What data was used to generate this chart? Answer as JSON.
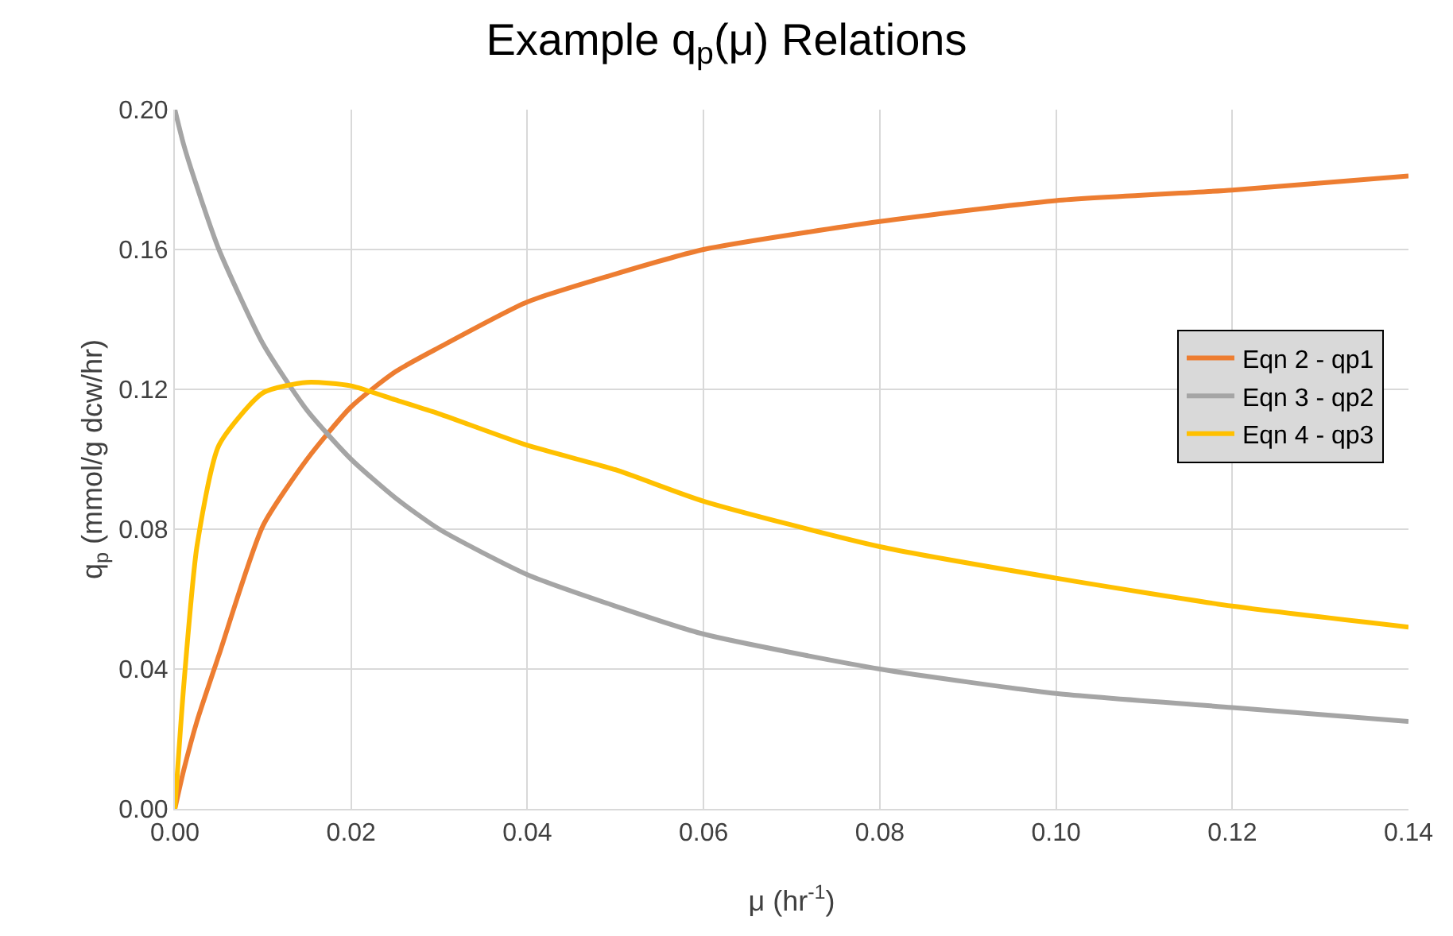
{
  "chart_data": {
    "type": "line",
    "title": "Example q$_{p}$(μ) Relations",
    "xlabel": "μ (hr$^{-1}$)",
    "ylabel": "q$_{p}$ (mmol/g dcw/hr)",
    "xlim": [
      0,
      0.14
    ],
    "xticks": [
      {
        "value": 0,
        "label": "0.00"
      },
      {
        "value": 0.02,
        "label": "0.02"
      },
      {
        "value": 0.04,
        "label": "0.04"
      },
      {
        "value": 0.06,
        "label": "0.06"
      },
      {
        "value": 0.08,
        "label": "0.08"
      },
      {
        "value": 0.1,
        "label": "0.10"
      },
      {
        "value": 0.12,
        "label": "0.12"
      },
      {
        "value": 0.14,
        "label": "0.14"
      }
    ],
    "ylim": [
      0,
      0.2
    ],
    "yticks": [
      {
        "value": 0,
        "label": "0.00"
      },
      {
        "value": 0.04,
        "label": "0.04"
      },
      {
        "value": 0.08,
        "label": "0.08"
      },
      {
        "value": 0.12,
        "label": "0.12"
      },
      {
        "value": 0.16,
        "label": "0.16"
      },
      {
        "value": 0.2,
        "label": "0.20"
      }
    ],
    "x": [
      0,
      0.001,
      0.0025,
      0.005,
      0.01,
      0.015,
      0.02,
      0.025,
      0.03,
      0.04,
      0.05,
      0.06,
      0.08,
      0.1,
      0.12,
      0.14
    ],
    "series": [
      {
        "name": "Eqn 2 - qp1",
        "color": "#ed7d31",
        "values": [
          0,
          0.011,
          0.025,
          0.044,
          0.081,
          0.1,
          0.115,
          0.125,
          0.132,
          0.145,
          0.153,
          0.16,
          0.168,
          0.174,
          0.177,
          0.181
        ]
      },
      {
        "name": "Eqn 3 - qp2",
        "color": "#a5a5a5",
        "values": [
          0.2,
          0.19,
          0.178,
          0.16,
          0.133,
          0.114,
          0.1,
          0.089,
          0.08,
          0.067,
          0.058,
          0.05,
          0.04,
          0.033,
          0.029,
          0.025
        ]
      },
      {
        "name": "Eqn 4 - qp3",
        "color": "#ffc000",
        "values": [
          0,
          0.035,
          0.075,
          0.104,
          0.119,
          0.122,
          0.121,
          0.117,
          0.113,
          0.104,
          0.097,
          0.088,
          0.075,
          0.066,
          0.058,
          0.052
        ]
      }
    ],
    "grid": true,
    "legend": "right",
    "marker": "none",
    "line_style": "solid"
  }
}
